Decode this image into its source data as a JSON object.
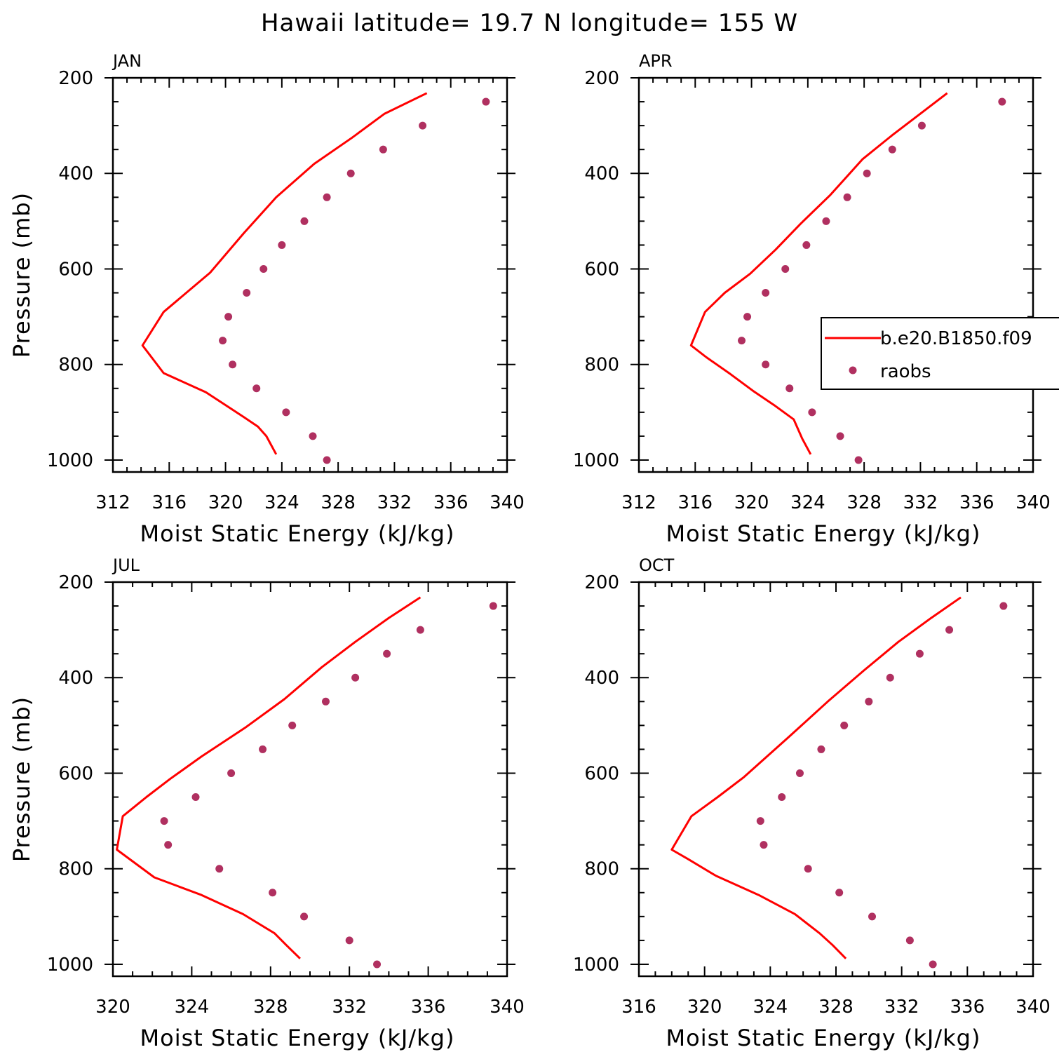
{
  "title": "Hawaii  latitude= 19.7 N longitude= 155 W",
  "colors": {
    "model": "#ff0000",
    "obs": "#b03060",
    "axis": "#000000"
  },
  "legend": {
    "model_label": "b.e20.B1850.f09",
    "obs_label": "raobs",
    "placement": "upper-right of APR panel"
  },
  "chart_data": [
    {
      "type": "line",
      "panel_label": "JAN",
      "xlabel": "Moist Static Energy (kJ/kg)",
      "ylabel": "Pressure (mb)",
      "xlim": [
        312,
        340
      ],
      "ylim": [
        1025,
        200
      ],
      "xticks": [
        312,
        316,
        320,
        324,
        328,
        332,
        336,
        340
      ],
      "yticks": [
        200,
        400,
        600,
        800,
        1000
      ],
      "series": [
        {
          "name": "b.e20.B1850.f09",
          "style": "line",
          "x": [
            334.3,
            331.3,
            329.0,
            326.3,
            323.6,
            321.3,
            318.9,
            315.6,
            314.1,
            315.6,
            318.6,
            320.0,
            321.3,
            322.3,
            322.9,
            323.6
          ],
          "y": [
            232,
            275,
            325,
            380,
            450,
            525,
            608,
            690,
            760,
            818,
            858,
            885,
            910,
            930,
            950,
            988
          ]
        },
        {
          "name": "raobs",
          "style": "markers",
          "x": [
            338.5,
            334.0,
            331.2,
            328.9,
            327.2,
            325.6,
            324.0,
            322.7,
            321.5,
            320.2,
            319.8,
            320.5,
            322.2,
            324.3,
            326.2,
            327.2
          ],
          "y": [
            250,
            300,
            350,
            400,
            450,
            500,
            550,
            600,
            650,
            700,
            750,
            800,
            850,
            900,
            950,
            1000
          ]
        }
      ]
    },
    {
      "type": "line",
      "panel_label": "APR",
      "xlabel": "Moist Static Energy (kJ/kg)",
      "ylabel": "",
      "xlim": [
        312,
        340
      ],
      "ylim": [
        1025,
        200
      ],
      "xticks": [
        312,
        316,
        320,
        324,
        328,
        332,
        336,
        340
      ],
      "yticks": [
        200,
        400,
        600,
        800,
        1000
      ],
      "series": [
        {
          "name": "b.e20.B1850.f09",
          "style": "line",
          "x": [
            333.9,
            332.0,
            330.0,
            327.9,
            325.6,
            323.5,
            321.7,
            319.9,
            318.1,
            316.7,
            315.7,
            316.8,
            318.5,
            320.1,
            321.6,
            323.0,
            323.6,
            324.2
          ],
          "y": [
            232,
            275,
            320,
            370,
            445,
            505,
            560,
            610,
            650,
            690,
            760,
            785,
            820,
            855,
            885,
            915,
            955,
            988
          ]
        },
        {
          "name": "raobs",
          "style": "markers",
          "x": [
            337.8,
            332.1,
            330.0,
            328.2,
            326.8,
            325.3,
            323.9,
            322.4,
            321.0,
            319.7,
            319.3,
            321.0,
            322.7,
            324.3,
            326.3,
            327.6
          ],
          "y": [
            250,
            300,
            350,
            400,
            450,
            500,
            550,
            600,
            650,
            700,
            750,
            800,
            850,
            900,
            950,
            1000
          ]
        }
      ]
    },
    {
      "type": "line",
      "panel_label": "JUL",
      "xlabel": "Moist Static Energy (kJ/kg)",
      "ylabel": "Pressure (mb)",
      "xlim": [
        320,
        340
      ],
      "ylim": [
        1025,
        200
      ],
      "xticks": [
        320,
        324,
        328,
        332,
        336,
        340
      ],
      "yticks": [
        200,
        400,
        600,
        800,
        1000
      ],
      "series": [
        {
          "name": "b.e20.B1850.f09",
          "style": "line",
          "x": [
            335.6,
            334.0,
            332.3,
            330.6,
            328.7,
            326.7,
            324.5,
            322.9,
            321.7,
            320.5,
            320.2,
            322.1,
            324.5,
            326.6,
            328.2,
            328.8,
            329.5
          ],
          "y": [
            232,
            275,
            325,
            378,
            445,
            505,
            565,
            612,
            650,
            690,
            760,
            818,
            855,
            895,
            935,
            960,
            988
          ]
        },
        {
          "name": "raobs",
          "style": "markers",
          "x": [
            339.3,
            335.6,
            333.9,
            332.3,
            330.8,
            329.1,
            327.6,
            326.0,
            324.2,
            322.6,
            322.8,
            325.4,
            328.1,
            329.7,
            332.0,
            333.4
          ],
          "y": [
            250,
            300,
            350,
            400,
            450,
            500,
            550,
            600,
            650,
            700,
            750,
            800,
            850,
            900,
            950,
            1000
          ]
        }
      ]
    },
    {
      "type": "line",
      "panel_label": "OCT",
      "xlabel": "Moist Static Energy (kJ/kg)",
      "ylabel": "",
      "xlim": [
        316,
        340
      ],
      "ylim": [
        1025,
        200
      ],
      "xticks": [
        316,
        320,
        324,
        328,
        332,
        336,
        340
      ],
      "yticks": [
        200,
        400,
        600,
        800,
        1000
      ],
      "series": [
        {
          "name": "b.e20.B1850.f09",
          "style": "line",
          "x": [
            335.6,
            333.8,
            331.8,
            329.7,
            327.5,
            325.1,
            322.4,
            320.8,
            319.2,
            318.0,
            319.0,
            320.7,
            323.3,
            325.5,
            327.0,
            327.8,
            328.6
          ],
          "y": [
            232,
            275,
            325,
            385,
            450,
            525,
            608,
            650,
            690,
            760,
            780,
            815,
            855,
            895,
            935,
            960,
            988
          ]
        },
        {
          "name": "raobs",
          "style": "markers",
          "x": [
            338.2,
            334.9,
            333.1,
            331.3,
            330.0,
            328.5,
            327.1,
            325.8,
            324.7,
            323.4,
            323.6,
            326.3,
            328.2,
            330.2,
            332.5,
            333.9
          ],
          "y": [
            250,
            300,
            350,
            400,
            450,
            500,
            550,
            600,
            650,
            700,
            750,
            800,
            850,
            900,
            950,
            1000
          ]
        }
      ]
    }
  ]
}
